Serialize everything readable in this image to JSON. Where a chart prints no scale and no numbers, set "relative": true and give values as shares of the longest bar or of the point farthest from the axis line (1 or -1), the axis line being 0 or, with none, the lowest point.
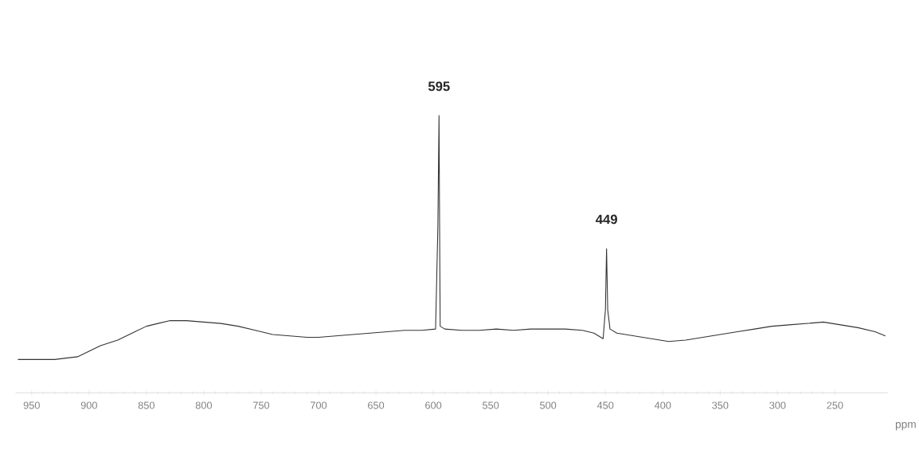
{
  "chart_data": {
    "type": "line",
    "relative": true,
    "xlabel": "ppm",
    "color": "#333333",
    "xlim": [
      964,
      204
    ],
    "xticks": [
      950,
      900,
      850,
      800,
      750,
      700,
      650,
      600,
      550,
      500,
      450,
      400,
      350,
      300,
      250
    ],
    "annotations": [
      {
        "text": "595",
        "x": 595,
        "y": 1.0
      },
      {
        "text": "449",
        "x": 449,
        "y": 0.52
      }
    ],
    "x": [
      962,
      950,
      930,
      910,
      900,
      890,
      875,
      860,
      850,
      840,
      830,
      815,
      800,
      785,
      770,
      755,
      740,
      725,
      710,
      700,
      685,
      670,
      655,
      640,
      625,
      610,
      598,
      596,
      595,
      594.5,
      594,
      590,
      575,
      560,
      545,
      530,
      515,
      500,
      485,
      470,
      460,
      452,
      450,
      449,
      448,
      446,
      440,
      425,
      410,
      395,
      380,
      365,
      350,
      335,
      320,
      305,
      290,
      275,
      260,
      245,
      230,
      215,
      206
    ],
    "values": [
      0.12,
      0.12,
      0.12,
      0.13,
      0.15,
      0.17,
      0.19,
      0.22,
      0.24,
      0.25,
      0.26,
      0.26,
      0.255,
      0.25,
      0.24,
      0.225,
      0.21,
      0.205,
      0.2,
      0.2,
      0.205,
      0.21,
      0.215,
      0.22,
      0.225,
      0.225,
      0.23,
      0.6,
      1.0,
      0.6,
      0.24,
      0.23,
      0.225,
      0.225,
      0.23,
      0.225,
      0.23,
      0.23,
      0.23,
      0.225,
      0.215,
      0.195,
      0.3,
      0.52,
      0.3,
      0.23,
      0.215,
      0.205,
      0.195,
      0.185,
      0.19,
      0.2,
      0.21,
      0.22,
      0.23,
      0.24,
      0.245,
      0.25,
      0.255,
      0.245,
      0.235,
      0.22,
      0.205
    ]
  }
}
